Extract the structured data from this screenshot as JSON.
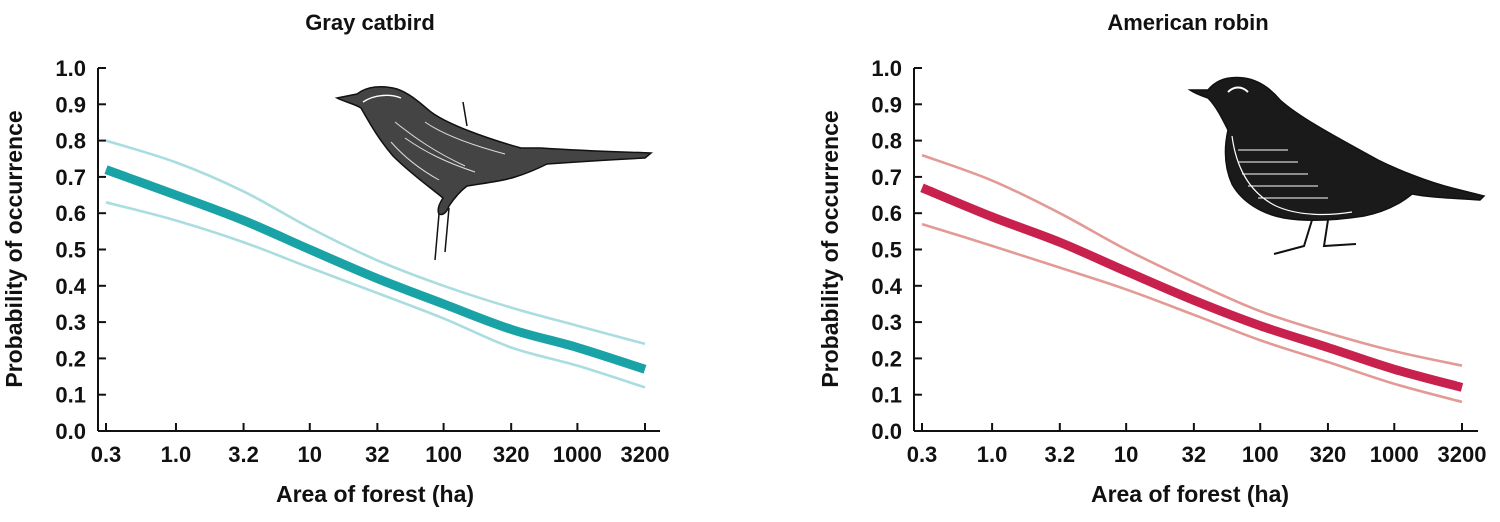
{
  "chart_data": [
    {
      "type": "line",
      "title": "Gray catbird",
      "xlabel": "Area of forest (ha)",
      "ylabel": "Probability of occurrence",
      "x_scale": "log",
      "xlim": [
        0.3,
        3200
      ],
      "ylim": [
        0,
        1
      ],
      "x_ticks": [
        "0.3",
        "1.0",
        "3.2",
        "10",
        "32",
        "100",
        "320",
        "1000",
        "3200"
      ],
      "y_ticks": [
        "0.0",
        "0.1",
        "0.2",
        "0.3",
        "0.4",
        "0.5",
        "0.6",
        "0.7",
        "0.8",
        "0.9",
        "1.0"
      ],
      "grid": false,
      "colors": {
        "main": "#1aa3a6",
        "band": "#a9dde0"
      },
      "illustration": "gray-catbird-drawing",
      "series": [
        {
          "role": "estimate",
          "x": [
            0.3,
            1.0,
            3.2,
            10,
            32,
            100,
            320,
            1000,
            3200
          ],
          "values": [
            0.72,
            0.65,
            0.58,
            0.5,
            0.42,
            0.35,
            0.28,
            0.23,
            0.17
          ]
        },
        {
          "role": "upper",
          "x": [
            0.3,
            1.0,
            3.2,
            10,
            32,
            100,
            320,
            1000,
            3200
          ],
          "values": [
            0.8,
            0.74,
            0.66,
            0.56,
            0.47,
            0.4,
            0.34,
            0.29,
            0.24
          ]
        },
        {
          "role": "lower",
          "x": [
            0.3,
            1.0,
            3.2,
            10,
            32,
            100,
            320,
            1000,
            3200
          ],
          "values": [
            0.63,
            0.58,
            0.52,
            0.45,
            0.38,
            0.31,
            0.23,
            0.18,
            0.12
          ]
        }
      ]
    },
    {
      "type": "line",
      "title": "American robin",
      "xlabel": "Area of forest (ha)",
      "ylabel": "Probability of occurrence",
      "x_scale": "log",
      "xlim": [
        0.3,
        3200
      ],
      "ylim": [
        0,
        1
      ],
      "x_ticks": [
        "0.3",
        "1.0",
        "3.2",
        "10",
        "32",
        "100",
        "320",
        "1000",
        "3200"
      ],
      "y_ticks": [
        "0.0",
        "0.1",
        "0.2",
        "0.3",
        "0.4",
        "0.5",
        "0.6",
        "0.7",
        "0.8",
        "0.9",
        "1.0"
      ],
      "grid": false,
      "colors": {
        "main": "#c8214e",
        "band": "#e39a95"
      },
      "illustration": "american-robin-drawing",
      "series": [
        {
          "role": "estimate",
          "x": [
            0.3,
            1.0,
            3.2,
            10,
            32,
            100,
            320,
            1000,
            3200
          ],
          "values": [
            0.67,
            0.59,
            0.52,
            0.44,
            0.36,
            0.29,
            0.23,
            0.17,
            0.12
          ]
        },
        {
          "role": "upper",
          "x": [
            0.3,
            1.0,
            3.2,
            10,
            32,
            100,
            320,
            1000,
            3200
          ],
          "values": [
            0.76,
            0.69,
            0.6,
            0.5,
            0.41,
            0.33,
            0.27,
            0.22,
            0.18
          ]
        },
        {
          "role": "lower",
          "x": [
            0.3,
            1.0,
            3.2,
            10,
            32,
            100,
            320,
            1000,
            3200
          ],
          "values": [
            0.57,
            0.51,
            0.45,
            0.39,
            0.32,
            0.25,
            0.19,
            0.13,
            0.08
          ]
        }
      ]
    }
  ]
}
